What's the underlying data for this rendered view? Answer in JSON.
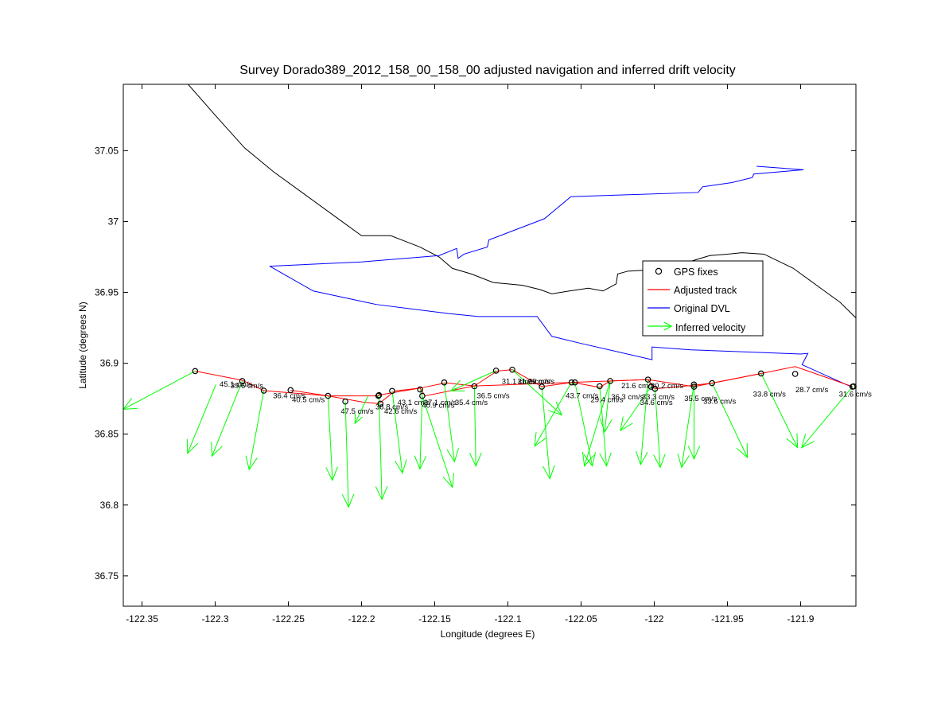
{
  "chart_data": {
    "type": "line",
    "title": "Survey Dorado389_2012_158_00_158_00 adjusted navigation and inferred drift velocity",
    "xlabel": "Longitude (degrees E)",
    "ylabel": "Latitude (degrees N)",
    "xlim": [
      -122.3628,
      -121.8622
    ],
    "ylim": [
      36.7286,
      37.0968
    ],
    "xticks": [
      -122.35,
      -122.3,
      -122.25,
      -122.2,
      -122.15,
      -122.1,
      -122.05,
      -122.0,
      -121.95,
      -121.9
    ],
    "xtick_labels": [
      "-122.35",
      "-122.3",
      "-122.25",
      "-122.2",
      "-122.15",
      "-122.1",
      "-122.05",
      "-122",
      "-121.95",
      "-121.9"
    ],
    "yticks": [
      36.75,
      36.8,
      36.85,
      36.9,
      36.95,
      37.0,
      37.05
    ],
    "ytick_labels": [
      "36.75",
      "36.8",
      "36.85",
      "36.9",
      "36.95",
      "37",
      "37.05"
    ],
    "grid": false,
    "legend_position": "upper-right",
    "legend": [
      {
        "label": "GPS fixes",
        "marker": "circle",
        "color": "#000000"
      },
      {
        "label": "Adjusted track",
        "color": "#ff0000"
      },
      {
        "label": "Original DVL",
        "color": "#0000ff"
      },
      {
        "label": "Inferred velocity",
        "color": "#00ff00",
        "marker": "arrow"
      }
    ],
    "coastline": {
      "color": "#000000",
      "segments": [
        [
          [
            -122.3185,
            37.0968
          ],
          [
            -122.3,
            37.075
          ],
          [
            -122.28,
            37.052
          ],
          [
            -122.26,
            37.035
          ],
          [
            -122.24,
            37.02
          ],
          [
            -122.22,
            37.005
          ],
          [
            -122.2,
            36.99
          ],
          [
            -122.18,
            36.99
          ],
          [
            -122.16,
            36.982
          ],
          [
            -122.147,
            36.975
          ],
          [
            -122.138,
            36.967
          ],
          [
            -122.125,
            36.963
          ],
          [
            -122.11,
            36.957
          ],
          [
            -122.09,
            36.955
          ],
          [
            -122.078,
            36.952
          ],
          [
            -122.07,
            36.949
          ],
          [
            -122.058,
            36.951
          ],
          [
            -122.045,
            36.953
          ],
          [
            -122.035,
            36.951
          ],
          [
            -122.026,
            36.956
          ],
          [
            -122.025,
            36.963
          ],
          [
            -122.018,
            36.965
          ],
          [
            -122.0,
            36.966
          ],
          [
            -121.99,
            36.966
          ],
          [
            -121.975,
            36.972
          ],
          [
            -121.962,
            36.976
          ],
          [
            -121.95,
            36.977
          ],
          [
            -121.94,
            36.978
          ],
          [
            -121.925,
            36.977
          ],
          [
            -121.905,
            36.967
          ],
          [
            -121.885,
            36.952
          ],
          [
            -121.873,
            36.943
          ],
          [
            -121.8622,
            36.932
          ]
        ]
      ]
    },
    "series": [
      {
        "name": "Original DVL",
        "color": "#0000ff",
        "x": [
          -122.2628,
          -122.2,
          -122.147,
          -122.135,
          -122.134,
          -122.13,
          -122.114,
          -122.113,
          -122.075,
          -122.057,
          -122.03,
          -121.97,
          -121.967,
          -121.947,
          -121.933,
          -121.932,
          -121.898,
          -121.93
        ],
        "y": [
          36.9685,
          36.9715,
          36.976,
          36.981,
          36.974,
          36.977,
          36.982,
          36.987,
          37.002,
          37.0175,
          37.0185,
          37.0205,
          37.0245,
          37.0275,
          37.031,
          37.0335,
          37.0365,
          37.039
        ]
      },
      {
        "name": "Original DVL",
        "color": "#0000ff",
        "x": [
          -122.2628,
          -122.233,
          -122.19,
          -122.14,
          -122.12,
          -122.09,
          -122.08,
          -122.07,
          -122.05,
          -122.0015,
          -122.0015,
          -121.975,
          -121.9,
          -121.895,
          -121.899,
          -121.8645
        ],
        "y": [
          36.9685,
          36.951,
          36.9415,
          36.935,
          36.933,
          36.933,
          36.933,
          36.919,
          36.914,
          36.9025,
          36.9115,
          36.9095,
          36.9065,
          36.907,
          36.899,
          36.883
        ]
      },
      {
        "name": "Adjusted track",
        "color": "#ff0000",
        "x": [
          -122.3137,
          -122.2815,
          -122.2668,
          -122.2229,
          -122.1985,
          -122.1881,
          -122.1771,
          -122.16,
          -122.1425,
          -122.1229,
          -122.1075,
          -122.097,
          -122.0768,
          -122.0559,
          -122.0373,
          -122.0301,
          -122.0043,
          -121.9995,
          -121.9729,
          -121.9605,
          -121.927,
          -121.9037,
          -121.8645
        ],
        "y": [
          36.8945,
          36.888,
          36.8807,
          36.877,
          36.8725,
          36.8715,
          36.8805,
          36.8825,
          36.8862,
          36.884,
          36.8945,
          36.8955,
          36.8835,
          36.8865,
          36.883,
          36.8875,
          36.8885,
          36.882,
          36.8845,
          36.886,
          36.8928,
          36.8977,
          36.8835
        ]
      },
      {
        "name": "Adjusted track",
        "color": "#ff0000",
        "x": [
          -122.2485,
          -122.2229,
          -122.1885,
          -122.1885,
          -122.16,
          -122.1565,
          -122.1229,
          -122.0559,
          -122.0043,
          -121.9729,
          -121.927
        ],
        "y": [
          36.881,
          36.877,
          36.877,
          36.8775,
          36.8825,
          36.877,
          36.884,
          36.8865,
          36.8885,
          36.8835,
          36.8928
        ]
      }
    ],
    "gps_fixes": {
      "x": [
        -122.3137,
        -122.2815,
        -122.2668,
        -122.2485,
        -122.2229,
        -122.2111,
        -122.1885,
        -122.1881,
        -122.1871,
        -122.1791,
        -122.16,
        -122.1585,
        -122.1435,
        -122.1229,
        -122.1081,
        -122.097,
        -122.0768,
        -122.0565,
        -122.0542,
        -122.0373,
        -122.0301,
        -122.0043,
        -122.0022,
        -121.9995,
        -121.9729,
        -121.9728,
        -121.9605,
        -121.927,
        -121.9037,
        -121.8645,
        -121.8638
      ],
      "y": [
        36.8945,
        36.8875,
        36.8807,
        36.881,
        36.877,
        36.873,
        36.877,
        36.8775,
        36.8715,
        36.8805,
        36.8815,
        36.877,
        36.8865,
        36.8838,
        36.8948,
        36.8955,
        36.8835,
        36.8865,
        36.8865,
        36.8838,
        36.8875,
        36.8885,
        36.8835,
        36.882,
        36.885,
        36.8835,
        36.886,
        36.8928,
        36.8925,
        36.8835,
        36.8837
      ]
    },
    "velocity_arrows": {
      "color": "#00ff00",
      "vectors": [
        {
          "x": [
            -122.3137,
            -122.3629
          ],
          "y": [
            36.8945,
            36.8675
          ]
        },
        {
          "x": [
            -122.2995,
            -122.3189
          ],
          "y": [
            36.885,
            36.8365
          ]
        },
        {
          "x": [
            -122.2815,
            -122.3022
          ],
          "y": [
            36.8875,
            36.8345
          ]
        },
        {
          "x": [
            -122.2668,
            -122.2768
          ],
          "y": [
            36.8807,
            36.825
          ]
        },
        {
          "x": [
            -122.2229,
            -122.2199
          ],
          "y": [
            36.877,
            36.8175
          ]
        },
        {
          "x": [
            -122.2111,
            -122.2089
          ],
          "y": [
            36.873,
            36.7985
          ]
        },
        {
          "x": [
            -122.1955,
            -122.2045
          ],
          "y": [
            36.877,
            36.8575
          ]
        },
        {
          "x": [
            -122.1881,
            -122.1861
          ],
          "y": [
            36.8775,
            36.804
          ]
        },
        {
          "x": [
            -122.1791,
            -122.1721
          ],
          "y": [
            36.8805,
            36.8225
          ]
        },
        {
          "x": [
            -122.1585,
            -122.1601
          ],
          "y": [
            36.877,
            36.8255
          ]
        },
        {
          "x": [
            -122.16,
            -122.1379
          ],
          "y": [
            36.8815,
            36.8125
          ]
        },
        {
          "x": [
            -122.1435,
            -122.1365
          ],
          "y": [
            36.8865,
            36.8305
          ]
        },
        {
          "x": [
            -122.1229,
            -122.1219
          ],
          "y": [
            36.8838,
            36.8275
          ]
        },
        {
          "x": [
            -122.1081,
            -122.1391
          ],
          "y": [
            36.8948,
            36.8805
          ]
        },
        {
          "x": [
            -122.097,
            -122.0632
          ],
          "y": [
            36.8955,
            36.8635
          ]
        },
        {
          "x": [
            -122.0768,
            -122.0713
          ],
          "y": [
            36.8835,
            36.8185
          ]
        },
        {
          "x": [
            -122.0565,
            -122.0817
          ],
          "y": [
            36.8865,
            36.8415
          ]
        },
        {
          "x": [
            -122.0542,
            -122.0423
          ],
          "y": [
            36.8865,
            36.8275
          ]
        },
        {
          "x": [
            -122.0373,
            -122.0326
          ],
          "y": [
            36.8838,
            36.8275
          ]
        },
        {
          "x": [
            -122.0301,
            -122.0477
          ],
          "y": [
            36.8875,
            36.8275
          ]
        },
        {
          "x": [
            -122.0301,
            -122.0339
          ],
          "y": [
            36.8875,
            36.8515
          ]
        },
        {
          "x": [
            -122.0022,
            -122.0231
          ],
          "y": [
            36.8835,
            36.8525
          ]
        },
        {
          "x": [
            -122.0043,
            -122.0093
          ],
          "y": [
            36.8885,
            36.8285
          ]
        },
        {
          "x": [
            -121.9995,
            -121.9959
          ],
          "y": [
            36.882,
            36.8265
          ]
        },
        {
          "x": [
            -121.9729,
            -121.9813
          ],
          "y": [
            36.885,
            36.8265
          ]
        },
        {
          "x": [
            -121.9728,
            -121.9728
          ],
          "y": [
            36.8835,
            36.8325
          ]
        },
        {
          "x": [
            -121.9605,
            -121.9363
          ],
          "y": [
            36.886,
            36.8335
          ]
        },
        {
          "x": [
            -121.927,
            -121.9021
          ],
          "y": [
            36.8928,
            36.8405
          ]
        },
        {
          "x": [
            -121.8645,
            -121.8993
          ],
          "y": [
            36.8835,
            36.8405
          ]
        }
      ]
    },
    "velocity_labels": [
      {
        "x": -122.297,
        "y": 36.8835,
        "text": "45.1 cm/s"
      },
      {
        "x": -122.2895,
        "y": 36.8825,
        "text": "39.6 cm/s"
      },
      {
        "x": -122.2605,
        "y": 36.8755,
        "text": "36.4 cm/s"
      },
      {
        "x": -122.2475,
        "y": 36.8725,
        "text": "40.5 cm/s"
      },
      {
        "x": -122.2142,
        "y": 36.8645,
        "text": "47.5 cm/s"
      },
      {
        "x": -122.1905,
        "y": 36.8675,
        "text": "38.8 cm/s"
      },
      {
        "x": -122.1845,
        "y": 36.8645,
        "text": "42.6 cm/s"
      },
      {
        "x": -122.1755,
        "y": 36.8705,
        "text": "43.1 cm/s"
      },
      {
        "x": -122.1575,
        "y": 36.8705,
        "text": "37.1 cm/s"
      },
      {
        "x": -122.1588,
        "y": 36.8685,
        "text": "40.9 cm/s"
      },
      {
        "x": -122.1362,
        "y": 36.8705,
        "text": "35.4 cm/s"
      },
      {
        "x": -122.1212,
        "y": 36.8755,
        "text": "36.5 cm/s"
      },
      {
        "x": -122.1042,
        "y": 36.8855,
        "text": "31.1 cm/s"
      },
      {
        "x": -122.0935,
        "y": 36.8855,
        "text": "31.6 cm/s"
      },
      {
        "x": -122.0862,
        "y": 36.8855,
        "text": "29 cm/s"
      },
      {
        "x": -122.0605,
        "y": 36.8755,
        "text": "43.7 cm/s"
      },
      {
        "x": -122.0435,
        "y": 36.8725,
        "text": "29.4 cm/s"
      },
      {
        "x": -122.0295,
        "y": 36.8745,
        "text": "36.3 cm/s"
      },
      {
        "x": -122.0225,
        "y": 36.8825,
        "text": "21.6 cm/s"
      },
      {
        "x": -122.0025,
        "y": 36.8825,
        "text": "20.2 cm/s"
      },
      {
        "x": -122.0085,
        "y": 36.8745,
        "text": "33.3 cm/s"
      },
      {
        "x": -122.0098,
        "y": 36.8705,
        "text": "34.6 cm/s"
      },
      {
        "x": -121.9795,
        "y": 36.8735,
        "text": "35.5 cm/s"
      },
      {
        "x": -121.9665,
        "y": 36.8715,
        "text": "33.6 cm/s"
      },
      {
        "x": -121.9325,
        "y": 36.8765,
        "text": "33.8 cm/s"
      },
      {
        "x": -121.9035,
        "y": 36.8795,
        "text": "28.7 cm/s"
      },
      {
        "x": -121.8738,
        "y": 36.8765,
        "text": "31.6 cm/s"
      }
    ]
  }
}
